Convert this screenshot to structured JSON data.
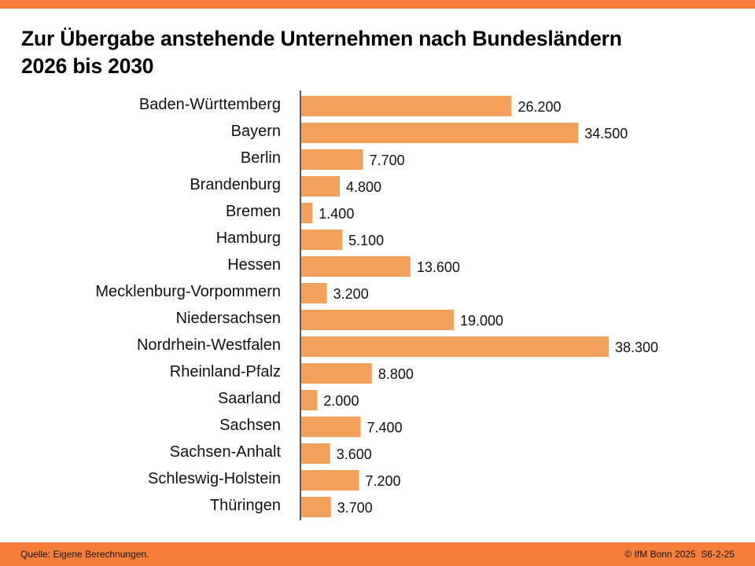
{
  "header": {
    "title_line1": "Zur Übergabe anstehende Unternehmen nach Bundesländern",
    "title_line2": "2026 bis 2030"
  },
  "footer": {
    "source": "Quelle: Eigene Berechnungen.",
    "copyright": "© IfM Bonn 2025  S6-2-25"
  },
  "colors": {
    "accent_bar": "#F77F3A",
    "bar_fill": "#F3A15A",
    "axis": "#000000"
  },
  "chart_data": {
    "type": "bar",
    "orientation": "horizontal",
    "title": "Zur Übergabe anstehende Unternehmen nach Bundesländern 2026 bis 2030",
    "xlabel": "",
    "ylabel": "",
    "xlim": [
      0,
      38300
    ],
    "grid": false,
    "legend": "none",
    "categories": [
      "Baden-Württemberg",
      "Bayern",
      "Berlin",
      "Brandenburg",
      "Bremen",
      "Hamburg",
      "Hessen",
      "Mecklenburg-Vorpommern",
      "Niedersachsen",
      "Nordrhein-Westfalen",
      "Rheinland-Pfalz",
      "Saarland",
      "Sachsen",
      "Sachsen-Anhalt",
      "Schleswig-Holstein",
      "Thüringen"
    ],
    "values": [
      26200,
      34500,
      7700,
      4800,
      1400,
      5100,
      13600,
      3200,
      19000,
      38300,
      8800,
      2000,
      7400,
      3600,
      7200,
      3700
    ],
    "value_labels": [
      "26.200",
      "34.500",
      "7.700",
      "4.800",
      "1.400",
      "5.100",
      "13.600",
      "3.200",
      "19.000",
      "38.300",
      "8.800",
      "2.000",
      "7.400",
      "3.600",
      "7.200",
      "3.700"
    ]
  }
}
